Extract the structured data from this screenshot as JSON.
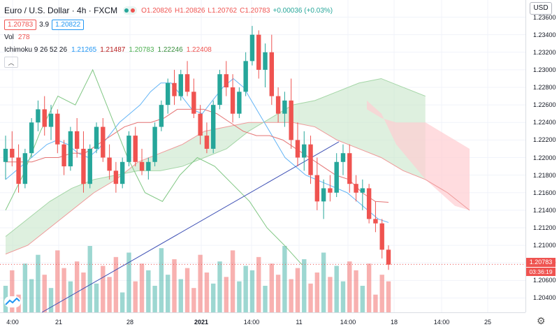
{
  "legend": {
    "symbol": "Euro / U.S. Dollar",
    "interval": "4h",
    "exchange": "FXCM",
    "open": "O1.20826",
    "high": "H1.20826",
    "low": "L1.20762",
    "close": "C1.20783",
    "change": "+0.00036 (+0.03%)",
    "sell_price": "1.20783",
    "spread": "3.9",
    "buy_price": "1.20822",
    "vol_label": "Vol",
    "vol_value": "278",
    "ichimoku_label": "Ichimoku 9 26 52 26",
    "ichimoku_values": [
      "1.21265",
      "1.21487",
      "1.20783",
      "1.22246",
      "1.22408"
    ],
    "ichimoku_colors": [
      "#2196f3",
      "#b71c1c",
      "#4caf50",
      "#388e3c",
      "#ef5350"
    ],
    "collapse_icon": "chevron-up"
  },
  "currency_button": "USD",
  "current_price_label": "1.20783",
  "countdown_label": "03:36:19",
  "price_ticks": [
    "1.23600",
    "1.23400",
    "1.23200",
    "1.23000",
    "1.22800",
    "1.22600",
    "1.22400",
    "1.22200",
    "1.22000",
    "1.21800",
    "1.21600",
    "1.21400",
    "1.21200",
    "1.21000",
    "1.20800",
    "1.20600",
    "1.20400"
  ],
  "time_ticks": [
    "4:00",
    "21",
    "28",
    "2021",
    "14:00",
    "11",
    "14:00",
    "18",
    "14:00",
    "25"
  ],
  "colors": {
    "up": "#26a69a",
    "down": "#ef5350",
    "cloud_up": "#c8e6c9",
    "cloud_down": "#ffcdd2",
    "trendline": "#3f51b5"
  },
  "chart_data": {
    "type": "candlestick",
    "x_labels": [
      "4:00",
      "21",
      "28",
      "2021",
      "14:00",
      "11",
      "14:00",
      "18",
      "14:00",
      "25"
    ],
    "ylim": [
      1.203,
      1.237
    ],
    "candles": [
      [
        1.2195,
        1.2225,
        1.2175,
        1.221
      ],
      [
        1.221,
        1.223,
        1.219,
        1.22
      ],
      [
        1.22,
        1.2215,
        1.216,
        1.217
      ],
      [
        1.217,
        1.221,
        1.2165,
        1.2205
      ],
      [
        1.2205,
        1.2245,
        1.22,
        1.224
      ],
      [
        1.224,
        1.2265,
        1.223,
        1.2255
      ],
      [
        1.2255,
        1.227,
        1.2225,
        1.2235
      ],
      [
        1.2235,
        1.226,
        1.222,
        1.225
      ],
      [
        1.225,
        1.2255,
        1.2205,
        1.2215
      ],
      [
        1.2215,
        1.222,
        1.218,
        1.219
      ],
      [
        1.219,
        1.2235,
        1.2185,
        1.223
      ],
      [
        1.223,
        1.2245,
        1.22,
        1.221
      ],
      [
        1.221,
        1.223,
        1.216,
        1.217
      ],
      [
        1.217,
        1.2215,
        1.2165,
        1.221
      ],
      [
        1.221,
        1.224,
        1.2205,
        1.2235
      ],
      [
        1.2235,
        1.2245,
        1.2195,
        1.22
      ],
      [
        1.22,
        1.2215,
        1.2175,
        1.2185
      ],
      [
        1.2185,
        1.2195,
        1.216,
        1.217
      ],
      [
        1.217,
        1.22,
        1.2165,
        1.2195
      ],
      [
        1.2195,
        1.223,
        1.219,
        1.2225
      ],
      [
        1.2225,
        1.2235,
        1.219,
        1.2195
      ],
      [
        1.2195,
        1.221,
        1.218,
        1.2185
      ],
      [
        1.2185,
        1.22,
        1.2175,
        1.2195
      ],
      [
        1.2195,
        1.224,
        1.219,
        1.2235
      ],
      [
        1.2235,
        1.2265,
        1.223,
        1.226
      ],
      [
        1.226,
        1.229,
        1.225,
        1.2285
      ],
      [
        1.2285,
        1.23,
        1.226,
        1.227
      ],
      [
        1.227,
        1.23,
        1.2265,
        1.2295
      ],
      [
        1.2295,
        1.231,
        1.227,
        1.2275
      ],
      [
        1.2275,
        1.229,
        1.2245,
        1.225
      ],
      [
        1.225,
        1.226,
        1.2215,
        1.2225
      ],
      [
        1.2225,
        1.224,
        1.2205,
        1.221
      ],
      [
        1.221,
        1.2265,
        1.2205,
        1.226
      ],
      [
        1.226,
        1.23,
        1.2255,
        1.2295
      ],
      [
        1.2295,
        1.231,
        1.227,
        1.228
      ],
      [
        1.228,
        1.2295,
        1.224,
        1.225
      ],
      [
        1.225,
        1.228,
        1.2245,
        1.2275
      ],
      [
        1.2275,
        1.232,
        1.227,
        1.231
      ],
      [
        1.231,
        1.235,
        1.2305,
        1.234
      ],
      [
        1.234,
        1.2345,
        1.229,
        1.23
      ],
      [
        1.23,
        1.233,
        1.228,
        1.232
      ],
      [
        1.232,
        1.234,
        1.226,
        1.227
      ],
      [
        1.227,
        1.228,
        1.224,
        1.225
      ],
      [
        1.225,
        1.2275,
        1.2235,
        1.2265
      ],
      [
        1.2265,
        1.229,
        1.221,
        1.222
      ],
      [
        1.222,
        1.224,
        1.219,
        1.22
      ],
      [
        1.22,
        1.223,
        1.2185,
        1.2215
      ],
      [
        1.2215,
        1.2225,
        1.217,
        1.218
      ],
      [
        1.218,
        1.22,
        1.214,
        1.215
      ],
      [
        1.215,
        1.2175,
        1.213,
        1.2165
      ],
      [
        1.2165,
        1.218,
        1.215,
        1.216
      ],
      [
        1.216,
        1.2205,
        1.2155,
        1.2195
      ],
      [
        1.2195,
        1.2215,
        1.218,
        1.2205
      ],
      [
        1.2205,
        1.2215,
        1.216,
        1.217
      ],
      [
        1.217,
        1.218,
        1.215,
        1.216
      ],
      [
        1.216,
        1.2175,
        1.214,
        1.2165
      ],
      [
        1.2165,
        1.217,
        1.2125,
        1.213
      ],
      [
        1.213,
        1.215,
        1.2115,
        1.2125
      ],
      [
        1.2125,
        1.213,
        1.2085,
        1.2095
      ],
      [
        1.2095,
        1.21,
        1.2072,
        1.2078
      ]
    ],
    "volume": [
      60,
      95,
      40,
      110,
      75,
      130,
      85,
      55,
      140,
      100,
      70,
      115,
      90,
      150,
      65,
      105,
      80,
      125,
      45,
      135,
      70,
      110,
      95,
      60,
      145,
      85,
      120,
      75,
      100,
      55,
      130,
      90,
      65,
      115,
      80,
      140,
      70,
      105,
      95,
      125,
      60,
      110,
      85,
      150,
      75,
      100,
      120,
      65,
      90,
      135,
      80,
      105,
      70,
      115,
      95,
      60,
      110,
      40,
      85,
      70
    ],
    "ichimoku": {
      "conversion": [
        1.2175,
        1.2185,
        1.2195,
        1.2205,
        1.2215,
        1.222,
        1.2215,
        1.2205,
        1.22,
        1.221,
        1.2225,
        1.224,
        1.225,
        1.226,
        1.2275,
        1.2285,
        1.2285,
        1.227,
        1.2255,
        1.225,
        1.2265,
        1.228,
        1.229,
        1.228,
        1.226,
        1.224,
        1.222,
        1.22,
        1.219,
        1.218,
        1.2175,
        1.217,
        1.2165,
        1.216,
        1.215,
        1.214,
        1.213,
        1.2126
      ],
      "base": [
        1.2195,
        1.2195,
        1.2195,
        1.22,
        1.22,
        1.2205,
        1.2205,
        1.2215,
        1.2225,
        1.2235,
        1.224,
        1.224,
        1.2245,
        1.2255,
        1.2255,
        1.2255,
        1.225,
        1.224,
        1.223,
        1.2225,
        1.2225,
        1.222,
        1.221,
        1.22,
        1.219,
        1.218,
        1.2175,
        1.216,
        1.215,
        1.2149
      ],
      "lagging": [
        1.214,
        1.218,
        1.223,
        1.227,
        1.226,
        1.23,
        1.225,
        1.22,
        1.216,
        1.215,
        1.218,
        1.22,
        1.219,
        1.217,
        1.215,
        1.212,
        1.21,
        1.2078
      ],
      "span_a": [
        1.211,
        1.213,
        1.215,
        1.2165,
        1.2175,
        1.218,
        1.2185,
        1.2185,
        1.219,
        1.22,
        1.221,
        1.223,
        1.2245,
        1.226,
        1.2265,
        1.2275,
        1.2285,
        1.229,
        1.228,
        1.227
      ],
      "span_b": [
        1.209,
        1.21,
        1.212,
        1.214,
        1.216,
        1.2175,
        1.2195,
        1.2205,
        1.2215,
        1.223,
        1.2235,
        1.224,
        1.224,
        1.224,
        1.2235,
        1.222,
        1.221,
        1.22,
        1.2185,
        1.2175,
        1.216,
        1.214
      ]
    }
  }
}
